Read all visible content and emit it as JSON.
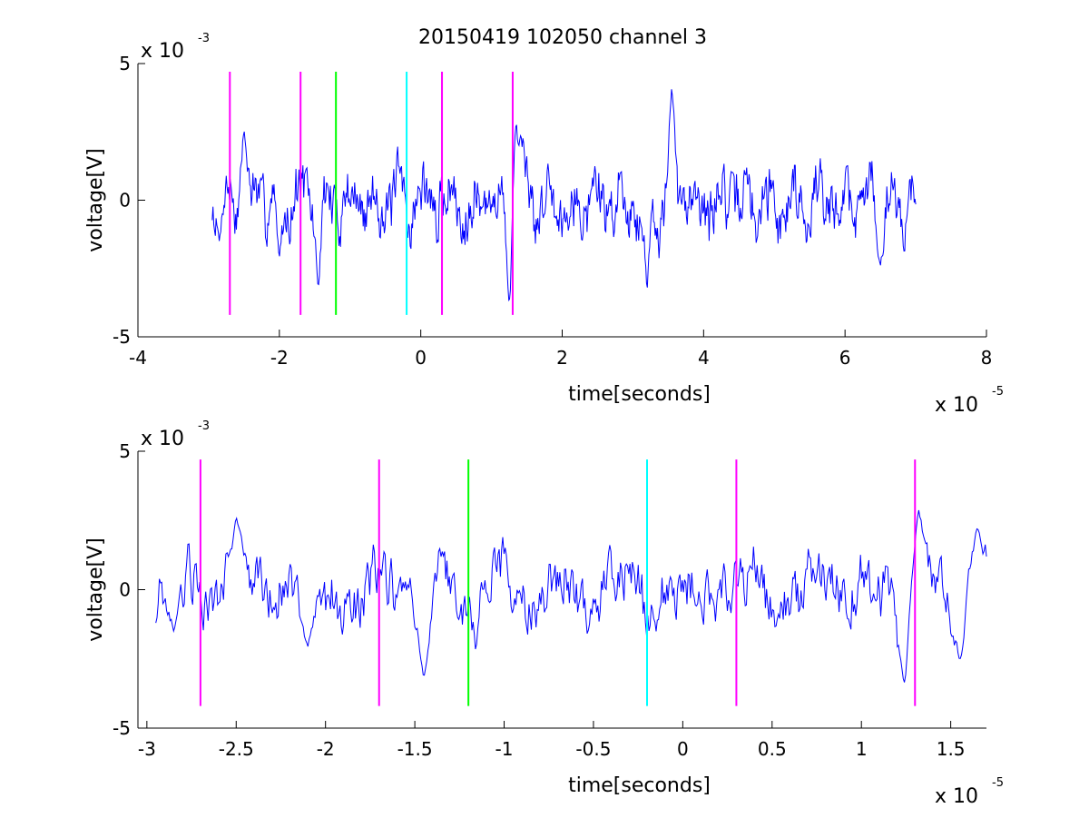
{
  "chart_data": [
    {
      "type": "line",
      "title": "20150419 102050 channel 3",
      "xlabel": "time[seconds]",
      "ylabel": "voltage[V]",
      "x_multiplier": {
        "base": "x 10",
        "exp": "-5"
      },
      "y_multiplier": {
        "base": "x 10",
        "exp": "-3"
      },
      "xlim": [
        -4,
        8
      ],
      "ylim": [
        -5,
        5
      ],
      "xticks": [
        -4,
        -2,
        0,
        2,
        4,
        6,
        8
      ],
      "xtick_labels": [
        "-4",
        "-2",
        "0",
        "2",
        "4",
        "6",
        "8"
      ],
      "yticks": [
        -5,
        0,
        5
      ],
      "ytick_labels": [
        "-5",
        "0",
        "5"
      ],
      "grid": false,
      "series": [
        {
          "color": "#0000ff",
          "x_range": [
            -2.95,
            7.0
          ],
          "samples": 900,
          "features": [
            {
              "x": -2.85,
              "y": -1.5
            },
            {
              "x": -2.5,
              "y": 2.65
            },
            {
              "x": -2.0,
              "y": -2.1
            },
            {
              "x": -1.45,
              "y": -3.25
            },
            {
              "x": 1.25,
              "y": -3.8
            },
            {
              "x": 1.35,
              "y": 2.9
            },
            {
              "x": 3.2,
              "y": -3.4
            },
            {
              "x": 3.55,
              "y": 4.2
            },
            {
              "x": 6.5,
              "y": -2.4
            }
          ]
        }
      ],
      "markers": [
        {
          "x": -2.7,
          "color": "#ff00ff",
          "ymin": -4.2,
          "ymax": 4.7
        },
        {
          "x": -1.7,
          "color": "#ff00ff",
          "ymin": -4.2,
          "ymax": 4.7
        },
        {
          "x": -1.2,
          "color": "#00ff00",
          "ymin": -4.2,
          "ymax": 4.7
        },
        {
          "x": -0.2,
          "color": "#00ffff",
          "ymin": -4.2,
          "ymax": 4.7
        },
        {
          "x": 0.3,
          "color": "#ff00ff",
          "ymin": -4.2,
          "ymax": 4.7
        },
        {
          "x": 1.3,
          "color": "#ff00ff",
          "ymin": -4.2,
          "ymax": 4.7
        }
      ]
    },
    {
      "type": "line",
      "title": "",
      "xlabel": "time[seconds]",
      "ylabel": "voltage[V]",
      "x_multiplier": {
        "base": "x 10",
        "exp": "-5"
      },
      "y_multiplier": {
        "base": "x 10",
        "exp": "-3"
      },
      "xlim": [
        -3.05,
        1.7
      ],
      "ylim": [
        -5,
        5
      ],
      "xticks": [
        -3,
        -2.5,
        -2,
        -1.5,
        -1,
        -0.5,
        0,
        0.5,
        1,
        1.5
      ],
      "xtick_labels": [
        "-3",
        "-2.5",
        "-2",
        "-1.5",
        "-1",
        "-0.5",
        "0",
        "0.5",
        "1",
        "1.5"
      ],
      "yticks": [
        -5,
        0,
        5
      ],
      "ytick_labels": [
        "-5",
        "0",
        "5"
      ],
      "grid": false,
      "series": [
        {
          "color": "#0000ff",
          "x_range": [
            -2.95,
            1.7
          ],
          "samples": 700,
          "features": [
            {
              "x": -2.85,
              "y": -1.5
            },
            {
              "x": -2.5,
              "y": 2.65
            },
            {
              "x": -2.1,
              "y": -2.1
            },
            {
              "x": -1.45,
              "y": -3.2
            },
            {
              "x": 1.25,
              "y": -3.8
            },
            {
              "x": 1.32,
              "y": 2.9
            },
            {
              "x": 1.55,
              "y": -2.6
            },
            {
              "x": 1.65,
              "y": 2.3
            }
          ]
        }
      ],
      "markers": [
        {
          "x": -2.7,
          "color": "#ff00ff",
          "ymin": -4.2,
          "ymax": 4.7
        },
        {
          "x": -1.7,
          "color": "#ff00ff",
          "ymin": -4.2,
          "ymax": 4.7
        },
        {
          "x": -1.2,
          "color": "#00ff00",
          "ymin": -4.2,
          "ymax": 4.7
        },
        {
          "x": -0.2,
          "color": "#00ffff",
          "ymin": -4.2,
          "ymax": 4.7
        },
        {
          "x": 0.3,
          "color": "#ff00ff",
          "ymin": -4.2,
          "ymax": 4.7
        },
        {
          "x": 1.3,
          "color": "#ff00ff",
          "ymin": -4.2,
          "ymax": 4.7
        }
      ]
    }
  ]
}
